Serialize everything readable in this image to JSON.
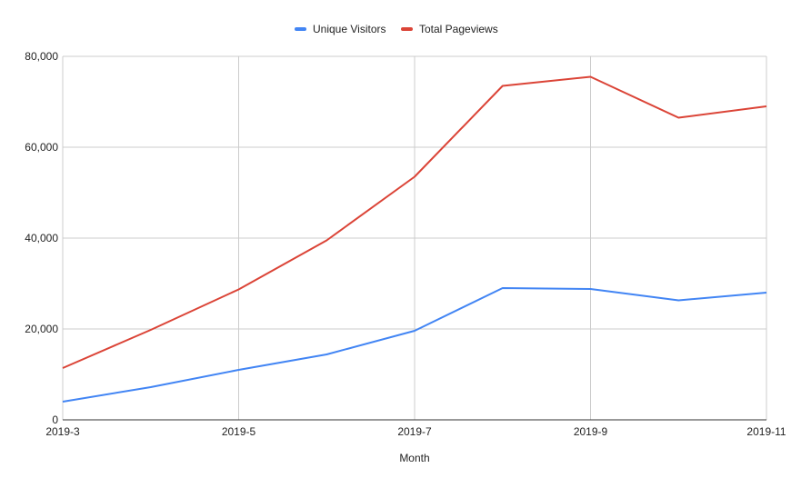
{
  "chart_data": {
    "type": "line",
    "title": "",
    "xlabel": "Month",
    "ylabel": "",
    "x": [
      "2019-3",
      "2019-4",
      "2019-5",
      "2019-6",
      "2019-7",
      "2019-8",
      "2019-9",
      "2019-10",
      "2019-11"
    ],
    "x_tick_labels": [
      "2019-3",
      "2019-5",
      "2019-7",
      "2019-9",
      "2019-11"
    ],
    "ylim": [
      0,
      80000
    ],
    "y_ticks": [
      0,
      20000,
      40000,
      60000,
      80000
    ],
    "y_tick_labels": [
      "0",
      "20,000",
      "40,000",
      "60,000",
      "80,000"
    ],
    "grid": true,
    "legend_position": "top-center",
    "series": [
      {
        "name": "Unique Visitors",
        "color": "#4285f4",
        "values": [
          4000,
          7200,
          11000,
          14400,
          19600,
          29000,
          28800,
          26300,
          28000
        ]
      },
      {
        "name": "Total Pageviews",
        "color": "#db4437",
        "values": [
          11400,
          19800,
          28700,
          39500,
          53500,
          73500,
          75500,
          66500,
          69000
        ]
      }
    ]
  }
}
